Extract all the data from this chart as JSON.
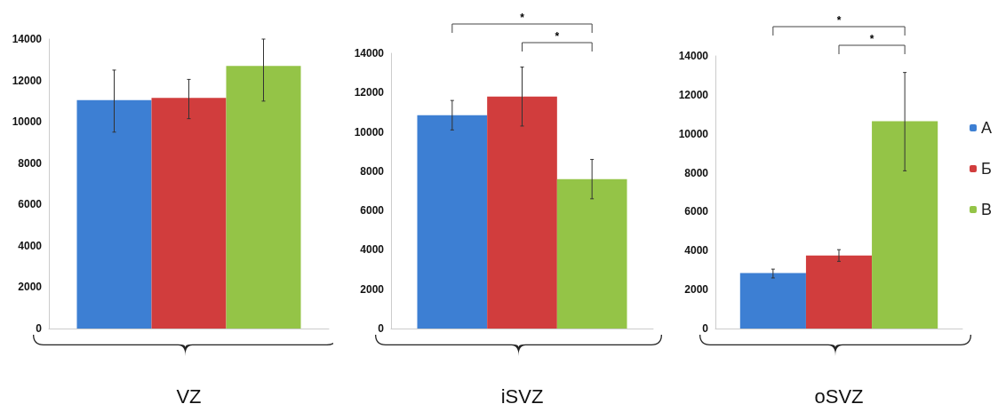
{
  "chart_data": [
    {
      "type": "bar",
      "xlabel": "VZ",
      "categories": [
        null
      ],
      "ylim": [
        0,
        14000
      ],
      "yticks": [
        0,
        2000,
        4000,
        6000,
        8000,
        10000,
        12000,
        14000
      ],
      "grid": false,
      "legend": false,
      "series": [
        {
          "color": "#3d7fd3",
          "values": [
            11050
          ],
          "errors": [
            [
              9500,
              12500
            ]
          ]
        },
        {
          "color": "#d13d3d",
          "values": [
            11150
          ],
          "errors": [
            [
              10150,
              12050
            ]
          ]
        },
        {
          "color": "#94c447",
          "values": [
            12700
          ],
          "errors": [
            [
              11000,
              14000
            ]
          ]
        }
      ]
    },
    {
      "type": "bar",
      "xlabel": "iSVZ",
      "categories": [
        null
      ],
      "ylim": [
        0,
        14000
      ],
      "yticks": [
        0,
        2000,
        4000,
        6000,
        8000,
        10000,
        12000,
        14000
      ],
      "grid": false,
      "legend": false,
      "annotations": [
        "*",
        "*"
      ],
      "series": [
        {
          "color": "#3d7fd3",
          "values": [
            10850
          ],
          "errors": [
            [
              10100,
              11600
            ]
          ]
        },
        {
          "color": "#d13d3d",
          "values": [
            11800
          ],
          "errors": [
            [
              10300,
              13300
            ]
          ]
        },
        {
          "color": "#94c447",
          "values": [
            7600
          ],
          "errors": [
            [
              6600,
              8600
            ]
          ]
        }
      ]
    },
    {
      "type": "bar",
      "xlabel": "oSVZ",
      "categories": [
        null
      ],
      "ylim": [
        0,
        14000
      ],
      "yticks": [
        0,
        2000,
        4000,
        6000,
        8000,
        10000,
        12000,
        14000
      ],
      "grid": false,
      "legend": "right",
      "annotations": [
        "*",
        "*"
      ],
      "series": [
        {
          "name": "А",
          "color": "#3d7fd3",
          "values": [
            2850
          ],
          "errors": [
            [
              2600,
              3050
            ]
          ]
        },
        {
          "name": "Б",
          "color": "#d13d3d",
          "values": [
            3750
          ],
          "errors": [
            [
              3450,
              4050
            ]
          ]
        },
        {
          "name": "В",
          "color": "#94c447",
          "values": [
            10650
          ],
          "errors": [
            [
              8100,
              13150
            ]
          ]
        }
      ]
    }
  ]
}
